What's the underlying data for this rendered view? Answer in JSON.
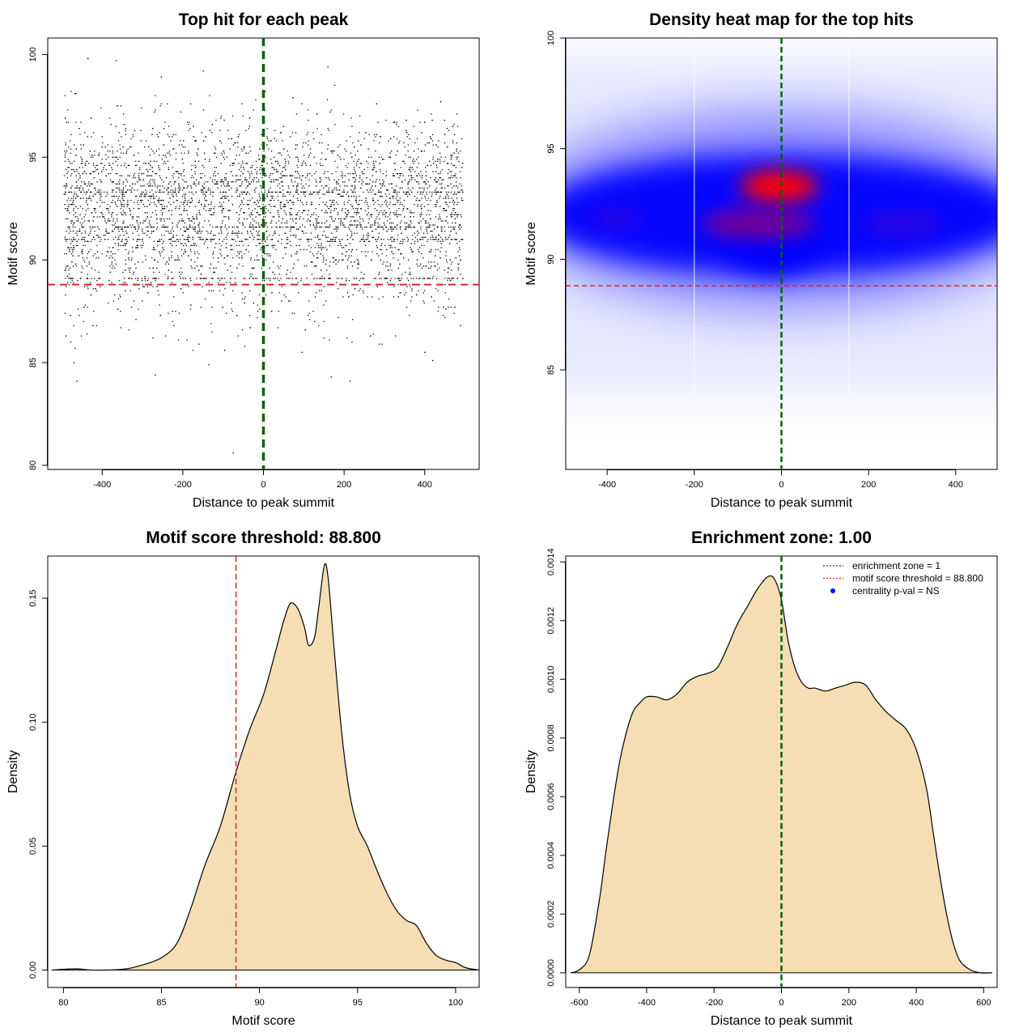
{
  "colors": {
    "threshold": "#d62728",
    "center": "#006400",
    "fill": "#f5deb3",
    "point": "#000000",
    "legend_dot": "#0000ff"
  },
  "chart_data": [
    {
      "id": "scatter",
      "type": "scatter",
      "title": "Top hit for each peak",
      "xlabel": "Distance to peak summit",
      "ylabel": "Motif score",
      "xlim": [
        -535,
        535
      ],
      "ylim": [
        79.8,
        100.8
      ],
      "xticks": [
        -400,
        -200,
        0,
        200,
        400
      ],
      "xtick_labels": [
        "-400",
        "-200",
        "0",
        "200",
        "400"
      ],
      "yticks": [
        80,
        85,
        90,
        95,
        100
      ],
      "ytick_labels": [
        "80",
        "85",
        "90",
        "95",
        "100"
      ],
      "n_points": 5000,
      "x_range": [
        -495,
        495
      ],
      "score_peaks": [
        91.6,
        93.3
      ],
      "banded_scores": [
        93.3,
        91.6,
        91.0,
        89.1
      ],
      "outlier_points": [
        [
          -75,
          80.6
        ],
        [
          -462,
          84.1
        ],
        [
          -268,
          84.4
        ],
        [
          215,
          84.1
        ],
        [
          168,
          84.3
        ],
        [
          -470,
          85.0
        ],
        [
          -135,
          84.9
        ],
        [
          420,
          85.1
        ],
        [
          -96,
          85.6
        ]
      ],
      "threshold": 88.8,
      "center_line": 0
    },
    {
      "id": "heatmap",
      "type": "heatmap",
      "title": "Density heat map for the top hits",
      "xlabel": "Distance to peak summit",
      "ylabel": "Motif score",
      "xlim": [
        -495,
        495
      ],
      "ylim": [
        80.5,
        100
      ],
      "xticks": [
        -400,
        -200,
        0,
        200,
        400
      ],
      "xtick_labels": [
        "-400",
        "-200",
        "0",
        "200",
        "400"
      ],
      "yticks": [
        85,
        90,
        95,
        100
      ],
      "ytick_labels": [
        "85",
        "90",
        "95",
        "100"
      ],
      "hotspots": [
        {
          "x": -5,
          "y": 93.3,
          "weight": 1.0
        },
        {
          "x": -50,
          "y": 91.6,
          "weight": 0.6
        },
        {
          "x": 280,
          "y": 91.6,
          "weight": 0.4
        },
        {
          "x": -380,
          "y": 91.8,
          "weight": 0.35
        }
      ],
      "white_vlines": [
        -200,
        155
      ],
      "threshold": 88.8,
      "center_line": 0
    },
    {
      "id": "score_density",
      "type": "area",
      "title": "Motif score threshold: 88.800",
      "xlabel": "Motif score",
      "ylabel": "Density",
      "xlim": [
        79.2,
        101.2
      ],
      "ylim": [
        -0.007,
        0.167
      ],
      "xticks": [
        80,
        85,
        90,
        95,
        100
      ],
      "xtick_labels": [
        "80",
        "85",
        "90",
        "95",
        "100"
      ],
      "yticks": [
        0.0,
        0.05,
        0.1,
        0.15
      ],
      "ytick_labels": [
        "0.00",
        "0.05",
        "0.10",
        "0.15"
      ],
      "x": [
        79.4,
        80.6,
        81.5,
        83.0,
        84.0,
        85.0,
        85.8,
        86.5,
        87.2,
        88.0,
        88.8,
        89.5,
        90.2,
        90.8,
        91.2,
        91.5,
        91.7,
        92.0,
        92.3,
        92.5,
        92.8,
        93.0,
        93.3,
        93.5,
        93.8,
        94.2,
        94.6,
        95.0,
        95.5,
        96.0,
        96.5,
        97.0,
        97.5,
        98.0,
        98.5,
        99.0,
        99.5,
        100.0,
        100.5,
        101.2
      ],
      "y": [
        0.0,
        0.0005,
        0.0,
        0.0003,
        0.002,
        0.005,
        0.011,
        0.025,
        0.042,
        0.058,
        0.08,
        0.097,
        0.111,
        0.128,
        0.14,
        0.147,
        0.148,
        0.145,
        0.138,
        0.131,
        0.134,
        0.145,
        0.163,
        0.158,
        0.13,
        0.095,
        0.071,
        0.058,
        0.05,
        0.04,
        0.031,
        0.024,
        0.02,
        0.018,
        0.011,
        0.006,
        0.004,
        0.003,
        0.001,
        0.0
      ],
      "threshold": 88.8
    },
    {
      "id": "position_density",
      "type": "area",
      "title": "Enrichment zone: 1.00",
      "xlabel": "Distance to peak summit",
      "ylabel": "Density",
      "xlim": [
        -640,
        640
      ],
      "ylim": [
        -5e-05,
        0.00142
      ],
      "xticks": [
        -600,
        -400,
        -200,
        0,
        200,
        400,
        600
      ],
      "xtick_labels": [
        "-600",
        "-400",
        "-200",
        "0",
        "200",
        "400",
        "600"
      ],
      "yticks": [
        0.0,
        0.0002,
        0.0004,
        0.0006,
        0.0008,
        0.001,
        0.0012,
        0.0014
      ],
      "ytick_labels": [
        "0.0000",
        "0.0002",
        "0.0004",
        "0.0006",
        "0.0008",
        "0.0010",
        "0.0012",
        "0.0014"
      ],
      "x": [
        -625,
        -600,
        -570,
        -540,
        -520,
        -500,
        -480,
        -460,
        -440,
        -420,
        -400,
        -370,
        -340,
        -310,
        -280,
        -250,
        -220,
        -190,
        -160,
        -130,
        -100,
        -70,
        -40,
        -20,
        0,
        20,
        40,
        60,
        80,
        100,
        130,
        160,
        190,
        220,
        250,
        280,
        310,
        340,
        370,
        400,
        430,
        450,
        470,
        490,
        510,
        530,
        560,
        590,
        625
      ],
      "y": [
        0.0,
        1e-05,
        6e-05,
        0.00025,
        0.00042,
        0.00058,
        0.00072,
        0.00082,
        0.00089,
        0.00092,
        0.00094,
        0.00094,
        0.00093,
        0.00095,
        0.00099,
        0.00101,
        0.00102,
        0.00104,
        0.00111,
        0.00119,
        0.00125,
        0.00131,
        0.00135,
        0.00134,
        0.00127,
        0.00113,
        0.00104,
        0.00099,
        0.00097,
        0.00097,
        0.00096,
        0.00097,
        0.00098,
        0.00099,
        0.00098,
        0.00093,
        0.00089,
        0.00086,
        0.00083,
        0.00076,
        0.00063,
        0.00048,
        0.00033,
        0.0002,
        0.0001,
        4e-05,
        1e-05,
        0.0,
        0.0
      ],
      "center_line": 0,
      "legend": [
        {
          "label": "enrichment zone = 1",
          "style": "dotted-line",
          "color": "#006400"
        },
        {
          "label": "motif score threshold = 88.800",
          "style": "dotted-line",
          "color": "#d62728"
        },
        {
          "label": "centrality p-val = NS",
          "style": "dot",
          "color": "#0000ff"
        }
      ],
      "legend_position": "top-right"
    }
  ]
}
